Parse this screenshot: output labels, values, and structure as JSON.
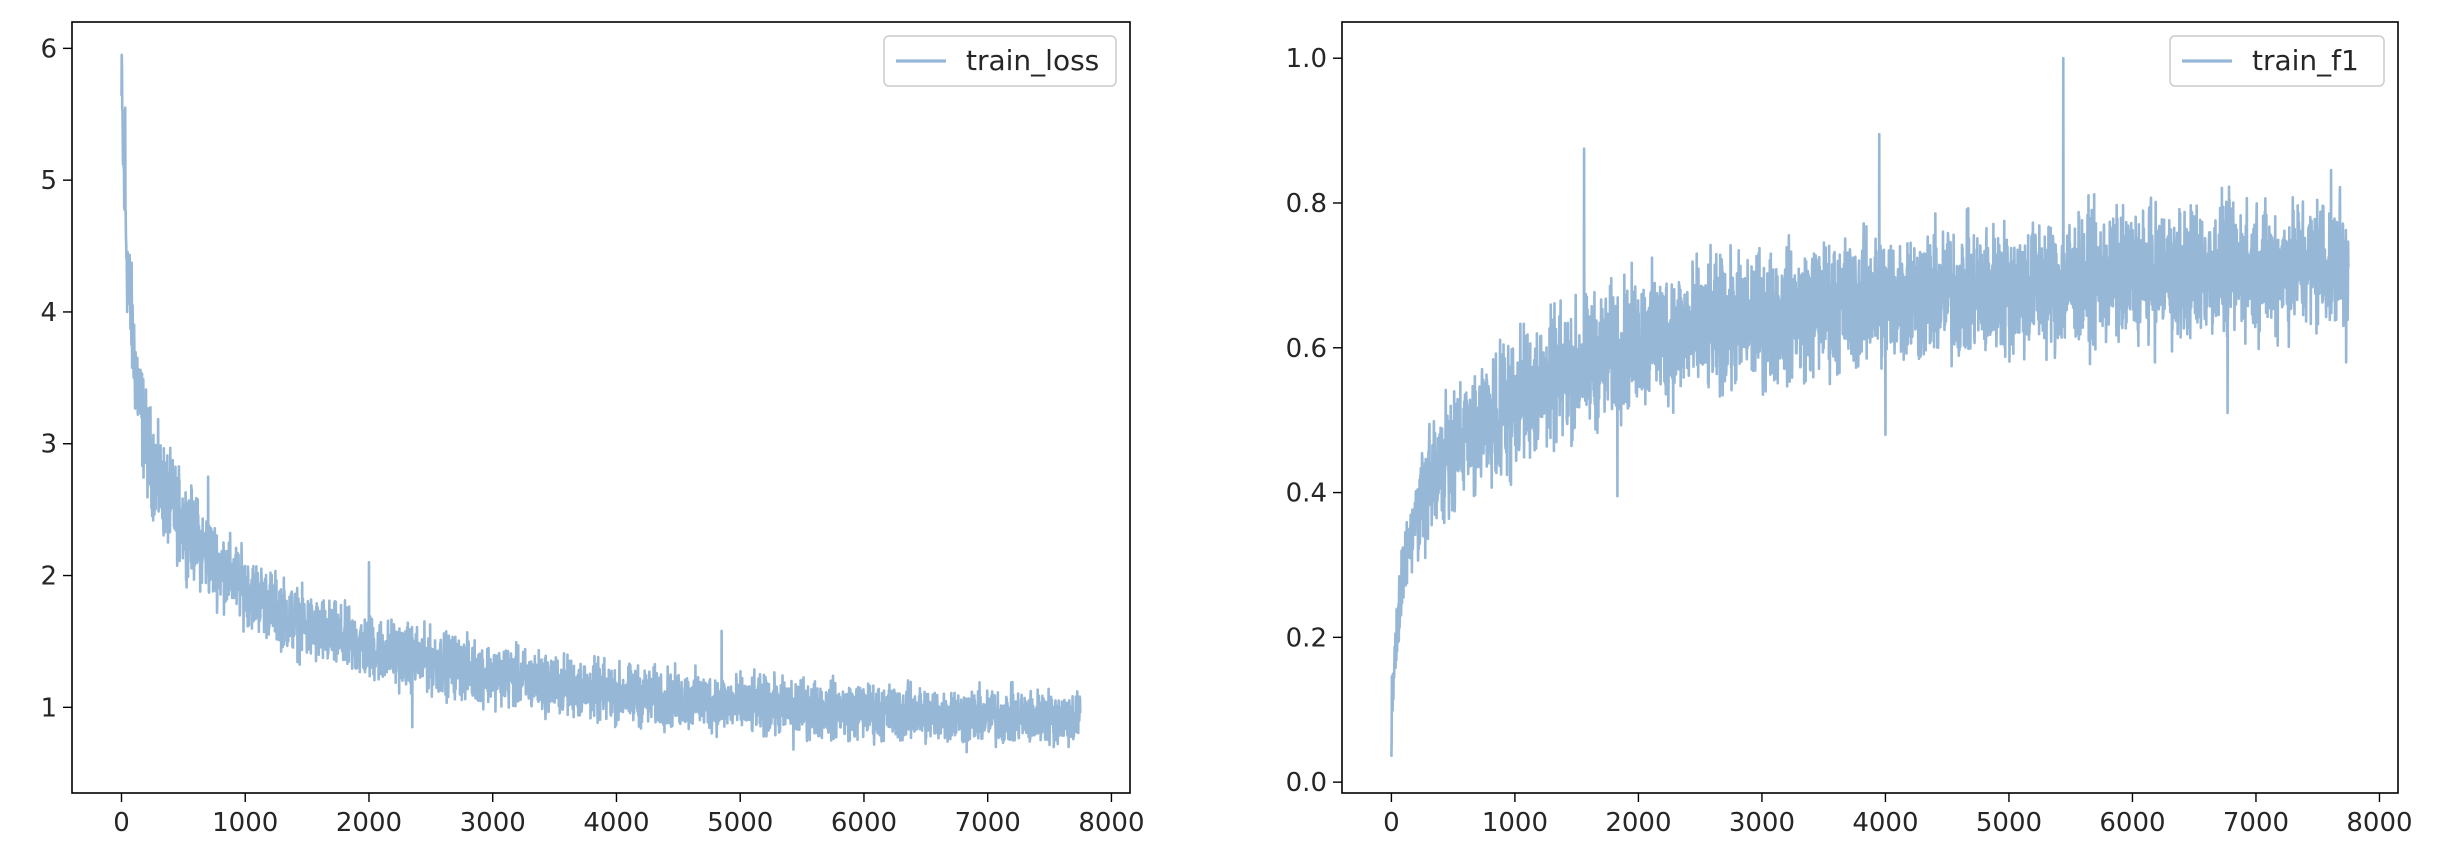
{
  "chart_data": [
    {
      "type": "line",
      "title": "",
      "xlabel": "",
      "ylabel": "",
      "xlim": [
        -400,
        8150
      ],
      "ylim": [
        0.35,
        6.2
      ],
      "xticks": [
        0,
        1000,
        2000,
        3000,
        4000,
        5000,
        6000,
        7000,
        8000
      ],
      "yticks": [
        1,
        2,
        3,
        4,
        5,
        6
      ],
      "grid": false,
      "legend": "upper right",
      "series": [
        {
          "name": "train_loss",
          "color": "#97B7D6",
          "n_points": 7750,
          "trend": [
            [
              0,
              5.6
            ],
            [
              20,
              5.0
            ],
            [
              50,
              4.3
            ],
            [
              100,
              3.7
            ],
            [
              150,
              3.3
            ],
            [
              200,
              3.0
            ],
            [
              300,
              2.7
            ],
            [
              500,
              2.4
            ],
            [
              700,
              2.15
            ],
            [
              1000,
              1.9
            ],
            [
              1500,
              1.6
            ],
            [
              2000,
              1.45
            ],
            [
              3000,
              1.25
            ],
            [
              4000,
              1.1
            ],
            [
              5000,
              1.02
            ],
            [
              6000,
              0.97
            ],
            [
              7000,
              0.93
            ],
            [
              7750,
              0.92
            ]
          ],
          "spread": [
            [
              0,
              0.6
            ],
            [
              200,
              0.5
            ],
            [
              1000,
              0.35
            ],
            [
              3000,
              0.3
            ],
            [
              7750,
              0.27
            ]
          ],
          "spikes": [
            [
              2,
              5.95
            ],
            [
              30,
              5.55
            ],
            [
              700,
              2.75
            ],
            [
              2000,
              2.1
            ],
            [
              2350,
              0.85
            ],
            [
              4850,
              1.58
            ],
            [
              5430,
              0.68
            ],
            [
              6830,
              0.66
            ]
          ]
        }
      ]
    },
    {
      "type": "line",
      "title": "",
      "xlabel": "",
      "ylabel": "",
      "xlim": [
        -400,
        8150
      ],
      "ylim": [
        -0.015,
        1.05
      ],
      "xticks": [
        0,
        1000,
        2000,
        3000,
        4000,
        5000,
        6000,
        7000,
        8000
      ],
      "yticks": [
        0.0,
        0.2,
        0.4,
        0.6,
        0.8,
        1.0
      ],
      "grid": false,
      "legend": "upper right",
      "series": [
        {
          "name": "train_f1",
          "color": "#97B7D6",
          "n_points": 7750,
          "trend": [
            [
              0,
              0.08
            ],
            [
              30,
              0.18
            ],
            [
              100,
              0.3
            ],
            [
              200,
              0.37
            ],
            [
              300,
              0.41
            ],
            [
              500,
              0.46
            ],
            [
              800,
              0.5
            ],
            [
              1000,
              0.53
            ],
            [
              1500,
              0.57
            ],
            [
              2000,
              0.61
            ],
            [
              3000,
              0.64
            ],
            [
              4000,
              0.67
            ],
            [
              5000,
              0.68
            ],
            [
              6000,
              0.7
            ],
            [
              7000,
              0.71
            ],
            [
              7750,
              0.72
            ]
          ],
          "spread": [
            [
              0,
              0.06
            ],
            [
              300,
              0.1
            ],
            [
              1000,
              0.12
            ],
            [
              7750,
              0.12
            ]
          ],
          "spikes": [
            [
              0,
              0.035
            ],
            [
              1560,
              0.875
            ],
            [
              1830,
              0.395
            ],
            [
              3950,
              0.895
            ],
            [
              5440,
              1.0
            ],
            [
              4000,
              0.48
            ],
            [
              6770,
              0.51
            ],
            [
              7730,
              0.58
            ]
          ]
        }
      ]
    }
  ]
}
